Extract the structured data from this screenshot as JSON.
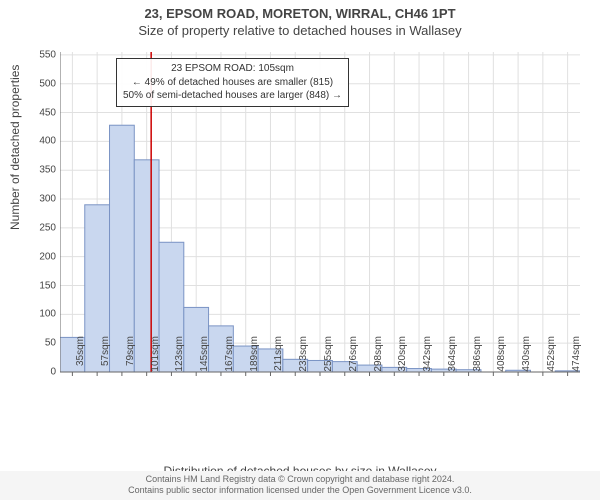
{
  "titles": {
    "main": "23, EPSOM ROAD, MORETON, WIRRAL, CH46 1PT",
    "sub": "Size of property relative to detached houses in Wallasey"
  },
  "axes": {
    "ylabel": "Number of detached properties",
    "xlabel": "Distribution of detached houses by size in Wallasey",
    "ylim": [
      0,
      555
    ],
    "yticks": [
      0,
      50,
      100,
      150,
      200,
      250,
      300,
      350,
      400,
      450,
      500,
      550
    ]
  },
  "annotation": {
    "line1": "23 EPSOM ROAD: 105sqm",
    "line2": "← 49% of detached houses are smaller (815)",
    "line3": "50% of semi-detached houses are larger (848) →"
  },
  "marker": {
    "x_value": 105,
    "color": "#cc0000"
  },
  "chart": {
    "type": "histogram",
    "bar_fill": "#c9d7ef",
    "bar_stroke": "#7a93c4",
    "grid_color": "#e0e0e0",
    "axis_color": "#666666",
    "background": "#ffffff",
    "bin_start": 24,
    "bin_width": 22,
    "bins": [
      {
        "label": "35sqm",
        "value": 60
      },
      {
        "label": "57sqm",
        "value": 290
      },
      {
        "label": "79sqm",
        "value": 428
      },
      {
        "label": "101sqm",
        "value": 368
      },
      {
        "label": "123sqm",
        "value": 225
      },
      {
        "label": "145sqm",
        "value": 112
      },
      {
        "label": "167sqm",
        "value": 80
      },
      {
        "label": "189sqm",
        "value": 45
      },
      {
        "label": "211sqm",
        "value": 40
      },
      {
        "label": "233sqm",
        "value": 22
      },
      {
        "label": "255sqm",
        "value": 20
      },
      {
        "label": "276sqm",
        "value": 18
      },
      {
        "label": "298sqm",
        "value": 12
      },
      {
        "label": "320sqm",
        "value": 8
      },
      {
        "label": "342sqm",
        "value": 6
      },
      {
        "label": "364sqm",
        "value": 5
      },
      {
        "label": "386sqm",
        "value": 4
      },
      {
        "label": "408sqm",
        "value": 0
      },
      {
        "label": "430sqm",
        "value": 3
      },
      {
        "label": "452sqm",
        "value": 0
      },
      {
        "label": "474sqm",
        "value": 2
      }
    ]
  },
  "footer": {
    "line1": "Contains HM Land Registry data © Crown copyright and database right 2024.",
    "line2": "Contains public sector information licensed under the Open Government Licence v3.0."
  }
}
